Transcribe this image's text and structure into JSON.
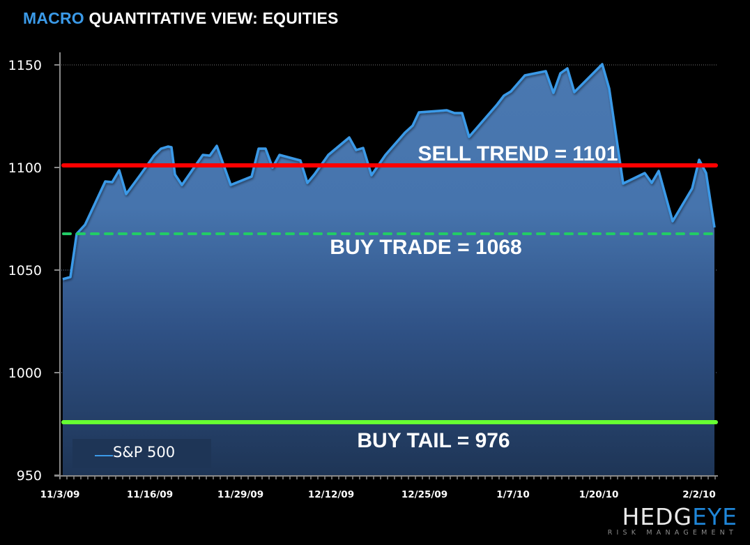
{
  "header": {
    "title_accent": "MACRO",
    "title_rest": "QUANTITATIVE VIEW: EQUITIES"
  },
  "legend": {
    "label": "S&P 500"
  },
  "logo": {
    "main_left": "HEDG",
    "main_right": "EYE",
    "sub": "RISK MANAGEMENT"
  },
  "labels": {
    "sell_trend": "SELL TREND = 1101",
    "buy_trade": "BUY TRADE = 1068",
    "buy_tail": "BUY TAIL = 976"
  },
  "y_ticks": [
    "1150",
    "1100",
    "1050",
    "1000",
    "950"
  ],
  "x_ticks": [
    "11/3/09",
    "11/16/09",
    "11/29/09",
    "12/12/09",
    "12/25/09",
    "1/7/10",
    "1/20/10",
    "2/2/10"
  ],
  "colors": {
    "title_accent": "#3b9ae8",
    "line": "#3b9ae8",
    "area_top": "#4a78b0",
    "area_bottom": "#1e3556",
    "sell_trend": "#ff0000",
    "buy_trade": "#22cc66",
    "buy_tail": "#66ff33"
  },
  "chart_data": {
    "type": "area",
    "title": "MACRO QUANTITATIVE VIEW: EQUITIES",
    "xlabel": "",
    "ylabel": "",
    "ylim": [
      950,
      1160
    ],
    "yticks": [
      950,
      1000,
      1050,
      1100,
      1150
    ],
    "xtick_labels": [
      "11/3/09",
      "11/16/09",
      "11/29/09",
      "12/12/09",
      "12/25/09",
      "1/7/10",
      "1/20/10",
      "2/2/10"
    ],
    "grid": "horizontal dotted at 1050 and 1150",
    "legend": {
      "entries": [
        "S&P 500"
      ],
      "position": "lower-left inside"
    },
    "series": [
      {
        "name": "S&P 500",
        "x": [
          "11/3/09",
          "11/4/09",
          "11/5/09",
          "11/6/09",
          "11/9/09",
          "11/10/09",
          "11/11/09",
          "11/12/09",
          "11/13/09",
          "11/16/09",
          "11/17/09",
          "11/18/09",
          "11/19/09",
          "11/20/09",
          "11/23/09",
          "11/24/09",
          "11/25/09",
          "11/27/09",
          "11/30/09",
          "12/1/09",
          "12/2/09",
          "12/3/09",
          "12/4/09",
          "12/7/09",
          "12/8/09",
          "12/9/09",
          "12/10/09",
          "12/11/09",
          "12/14/09",
          "12/15/09",
          "12/16/09",
          "12/17/09",
          "12/18/09",
          "12/21/09",
          "12/22/09",
          "12/23/09",
          "12/24/09",
          "12/28/09",
          "12/29/09",
          "12/30/09",
          "12/31/09",
          "1/4/10",
          "1/5/10",
          "1/6/10",
          "1/7/10",
          "1/8/10",
          "1/11/10",
          "1/12/10",
          "1/13/10",
          "1/14/10",
          "1/15/10",
          "1/19/10",
          "1/20/10",
          "1/21/10",
          "1/22/10",
          "1/25/10",
          "1/26/10",
          "1/27/10",
          "1/28/10",
          "1/29/10",
          "2/1/10",
          "2/2/10",
          "2/3/10",
          "2/4/10"
        ],
        "values": [
          1045.6,
          1046.6,
          1067.7,
          1072.0,
          1093.0,
          1092.9,
          1098.6,
          1087.0,
          1096.0,
          1105.8,
          1109.0,
          1110.0,
          1109.8,
          1096.6,
          1091.5,
          1106.0,
          1105.8,
          1110.5,
          1091.5,
          1095.6,
          1109.2,
          1109.2,
          1100.0,
          1106.0,
          1103.4,
          1092.5,
          1096.6,
          1106.0,
          1114.6,
          1108.5,
          1109.5,
          1096.3,
          1106.0,
          1117.0,
          1120.4,
          1126.9,
          1128.0,
          1126.5,
          1126.5,
          1115.0,
          1130.6,
          1135.0,
          1137.0,
          1144.9,
          1147.0,
          1136.4,
          1146.0,
          1148.3,
          1137.1,
          1150.7,
          1138.4,
          1092.2,
          1097.3,
          1092.5,
          1098.3,
          1073.8,
          1089.8,
          1103.7,
          1097.3,
          1070.7,
          1089.0,
          1103.7,
          1097.3,
          1070.7
        ]
      }
    ],
    "reference_lines": [
      {
        "name": "SELL TREND",
        "value": 1101,
        "color": "#ff0000",
        "style": "solid"
      },
      {
        "name": "BUY TRADE",
        "value": 1068,
        "color": "#22cc66",
        "style": "dashed"
      },
      {
        "name": "BUY TAIL",
        "value": 976,
        "color": "#66ff33",
        "style": "solid"
      }
    ]
  }
}
